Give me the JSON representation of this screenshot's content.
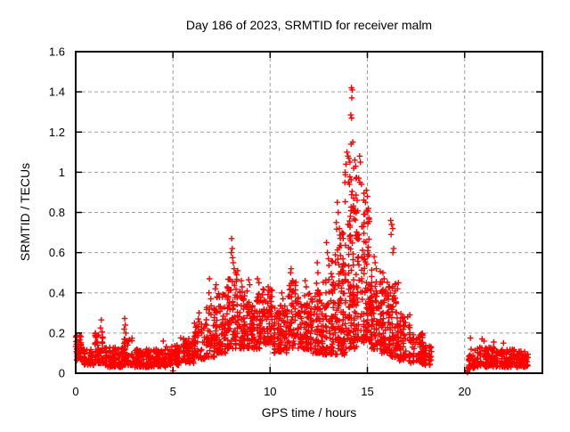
{
  "window": {
    "background_color": "#ffffff"
  },
  "chart_data": {
    "type": "scatter",
    "title": "Day 186 of 2023, SRMTID for receiver malm",
    "xlabel": "GPS time / hours",
    "ylabel": "SRMTID / TECUs",
    "xlim": [
      0,
      24
    ],
    "ylim": [
      0,
      1.6
    ],
    "xticks": [
      0,
      5,
      10,
      15,
      20
    ],
    "xtick_labels": [
      "0",
      "5",
      "10",
      "15",
      "20"
    ],
    "yticks": [
      0,
      0.2,
      0.4,
      0.6,
      0.8,
      1.0,
      1.2,
      1.4,
      1.6
    ],
    "ytick_labels": [
      "0",
      "0.2",
      "0.4",
      "0.6",
      "0.8",
      "1",
      "1.2",
      "1.4",
      "1.6"
    ],
    "grid": true,
    "grid_style": "dashed",
    "grid_color": "#a0a0a0",
    "border_color": "#000000",
    "marker": "plus",
    "marker_color": "#ff0000",
    "series_name": "SRMTID",
    "legend": "none",
    "data_gap_hours": [
      18.3,
      20.2
    ],
    "peak": {
      "t": 14.2,
      "value": 1.42
    },
    "envelope_segments": [
      [
        0.0,
        0.35,
        45,
        0.06,
        0.19,
        1.4
      ],
      [
        0.35,
        0.95,
        55,
        0.04,
        0.12,
        1.3
      ],
      [
        0.95,
        1.5,
        65,
        0.05,
        0.2,
        1.8
      ],
      [
        1.5,
        2.4,
        95,
        0.03,
        0.13,
        1.4
      ],
      [
        2.4,
        2.9,
        55,
        0.04,
        0.18,
        1.8
      ],
      [
        2.9,
        4.6,
        170,
        0.03,
        0.12,
        1.3
      ],
      [
        4.6,
        5.4,
        85,
        0.04,
        0.14,
        1.4
      ],
      [
        5.4,
        6.1,
        75,
        0.05,
        0.18,
        1.5
      ],
      [
        6.1,
        6.65,
        55,
        0.07,
        0.26,
        1.6
      ],
      [
        6.65,
        7.15,
        60,
        0.08,
        0.34,
        1.7
      ],
      [
        7.15,
        7.75,
        70,
        0.1,
        0.4,
        1.6
      ],
      [
        7.75,
        8.35,
        80,
        0.12,
        0.47,
        1.5
      ],
      [
        8.35,
        9.0,
        85,
        0.12,
        0.43,
        1.5
      ],
      [
        9.0,
        9.6,
        75,
        0.12,
        0.41,
        1.5
      ],
      [
        9.6,
        10.15,
        70,
        0.14,
        0.42,
        1.4
      ],
      [
        10.15,
        10.9,
        90,
        0.1,
        0.34,
        1.4
      ],
      [
        10.9,
        11.45,
        70,
        0.12,
        0.46,
        1.5
      ],
      [
        11.45,
        12.1,
        90,
        0.12,
        0.4,
        1.4
      ],
      [
        12.1,
        12.7,
        85,
        0.1,
        0.46,
        1.5
      ],
      [
        12.7,
        13.35,
        85,
        0.09,
        0.57,
        1.5
      ],
      [
        13.35,
        13.85,
        95,
        0.09,
        0.72,
        1.4
      ],
      [
        13.85,
        14.45,
        130,
        0.12,
        1.0,
        1.35
      ],
      [
        14.45,
        15.1,
        115,
        0.15,
        0.9,
        1.45
      ],
      [
        15.1,
        15.7,
        90,
        0.12,
        0.52,
        1.5
      ],
      [
        15.7,
        16.12,
        70,
        0.1,
        0.46,
        1.5
      ],
      [
        16.12,
        16.5,
        60,
        0.08,
        0.45,
        1.5
      ],
      [
        16.5,
        17.2,
        85,
        0.06,
        0.3,
        1.4
      ],
      [
        17.2,
        17.85,
        65,
        0.05,
        0.2,
        1.4
      ],
      [
        17.85,
        18.3,
        40,
        0.04,
        0.14,
        1.3
      ],
      [
        20.2,
        20.55,
        45,
        0.02,
        0.12,
        1.3
      ],
      [
        20.55,
        21.6,
        100,
        0.03,
        0.13,
        1.4
      ],
      [
        21.6,
        22.6,
        95,
        0.03,
        0.12,
        1.4
      ],
      [
        22.6,
        23.3,
        75,
        0.03,
        0.11,
        1.3
      ]
    ],
    "notable_points": [
      [
        1.32,
        0.265
      ],
      [
        1.28,
        0.225
      ],
      [
        1.36,
        0.205
      ],
      [
        2.52,
        0.272
      ],
      [
        2.55,
        0.24
      ],
      [
        2.49,
        0.22
      ],
      [
        2.58,
        0.2
      ],
      [
        4.5,
        0.16
      ],
      [
        5.0,
        0.012
      ],
      [
        6.35,
        0.3
      ],
      [
        6.3,
        0.27
      ],
      [
        6.88,
        0.47
      ],
      [
        6.85,
        0.4
      ],
      [
        6.95,
        0.37
      ],
      [
        7.22,
        0.44
      ],
      [
        7.18,
        0.42
      ],
      [
        7.28,
        0.38
      ],
      [
        8.02,
        0.67
      ],
      [
        8.05,
        0.62
      ],
      [
        8.0,
        0.6
      ],
      [
        8.07,
        0.575
      ],
      [
        8.1,
        0.55
      ],
      [
        8.15,
        0.52
      ],
      [
        8.22,
        0.5
      ],
      [
        8.28,
        0.49
      ],
      [
        8.33,
        0.51
      ],
      [
        8.52,
        0.46
      ],
      [
        8.56,
        0.43
      ],
      [
        8.9,
        0.465
      ],
      [
        8.95,
        0.44
      ],
      [
        9.35,
        0.47
      ],
      [
        9.42,
        0.45
      ],
      [
        9.9,
        0.43
      ],
      [
        9.95,
        0.41
      ],
      [
        10.6,
        0.4
      ],
      [
        10.66,
        0.37
      ],
      [
        11.08,
        0.52
      ],
      [
        11.05,
        0.5
      ],
      [
        11.15,
        0.46
      ],
      [
        11.8,
        0.46
      ],
      [
        11.86,
        0.43
      ],
      [
        12.42,
        0.55
      ],
      [
        12.46,
        0.5
      ],
      [
        12.9,
        0.65
      ],
      [
        12.95,
        0.6
      ],
      [
        13.0,
        0.57
      ],
      [
        13.45,
        0.85
      ],
      [
        13.5,
        0.8
      ],
      [
        13.4,
        0.75
      ],
      [
        13.56,
        0.72
      ],
      [
        14.18,
        1.42
      ],
      [
        14.22,
        1.41
      ],
      [
        14.2,
        1.37
      ],
      [
        14.15,
        1.285
      ],
      [
        14.19,
        1.27
      ],
      [
        14.25,
        1.15
      ],
      [
        14.16,
        1.14
      ],
      [
        13.95,
        1.1
      ],
      [
        14.0,
        1.08
      ],
      [
        14.05,
        1.07
      ],
      [
        14.1,
        1.05
      ],
      [
        13.9,
        1.04
      ],
      [
        14.3,
        1.02
      ],
      [
        13.86,
        1.0
      ],
      [
        14.35,
        1.06
      ],
      [
        14.4,
        1.03
      ],
      [
        14.6,
        1.08
      ],
      [
        14.64,
        1.05
      ],
      [
        14.55,
        0.97
      ],
      [
        14.61,
        0.95
      ],
      [
        14.7,
        0.94
      ],
      [
        14.95,
        0.91
      ],
      [
        15.0,
        0.88
      ],
      [
        14.9,
        0.85
      ],
      [
        15.05,
        0.82
      ],
      [
        15.35,
        0.58
      ],
      [
        15.4,
        0.55
      ],
      [
        15.46,
        0.52
      ],
      [
        15.8,
        0.5
      ],
      [
        15.86,
        0.47
      ],
      [
        16.2,
        0.76
      ],
      [
        16.25,
        0.74
      ],
      [
        16.3,
        0.72
      ],
      [
        16.22,
        0.69
      ],
      [
        16.35,
        0.62
      ],
      [
        16.31,
        0.6
      ],
      [
        16.6,
        0.45
      ],
      [
        16.55,
        0.42
      ],
      [
        20.15,
        0.005
      ],
      [
        20.16,
        0.015
      ],
      [
        20.14,
        0.01
      ],
      [
        20.3,
        0.175
      ],
      [
        20.9,
        0.17
      ],
      [
        21.0,
        0.16
      ],
      [
        21.5,
        0.155
      ],
      [
        22.0,
        0.15
      ]
    ]
  }
}
